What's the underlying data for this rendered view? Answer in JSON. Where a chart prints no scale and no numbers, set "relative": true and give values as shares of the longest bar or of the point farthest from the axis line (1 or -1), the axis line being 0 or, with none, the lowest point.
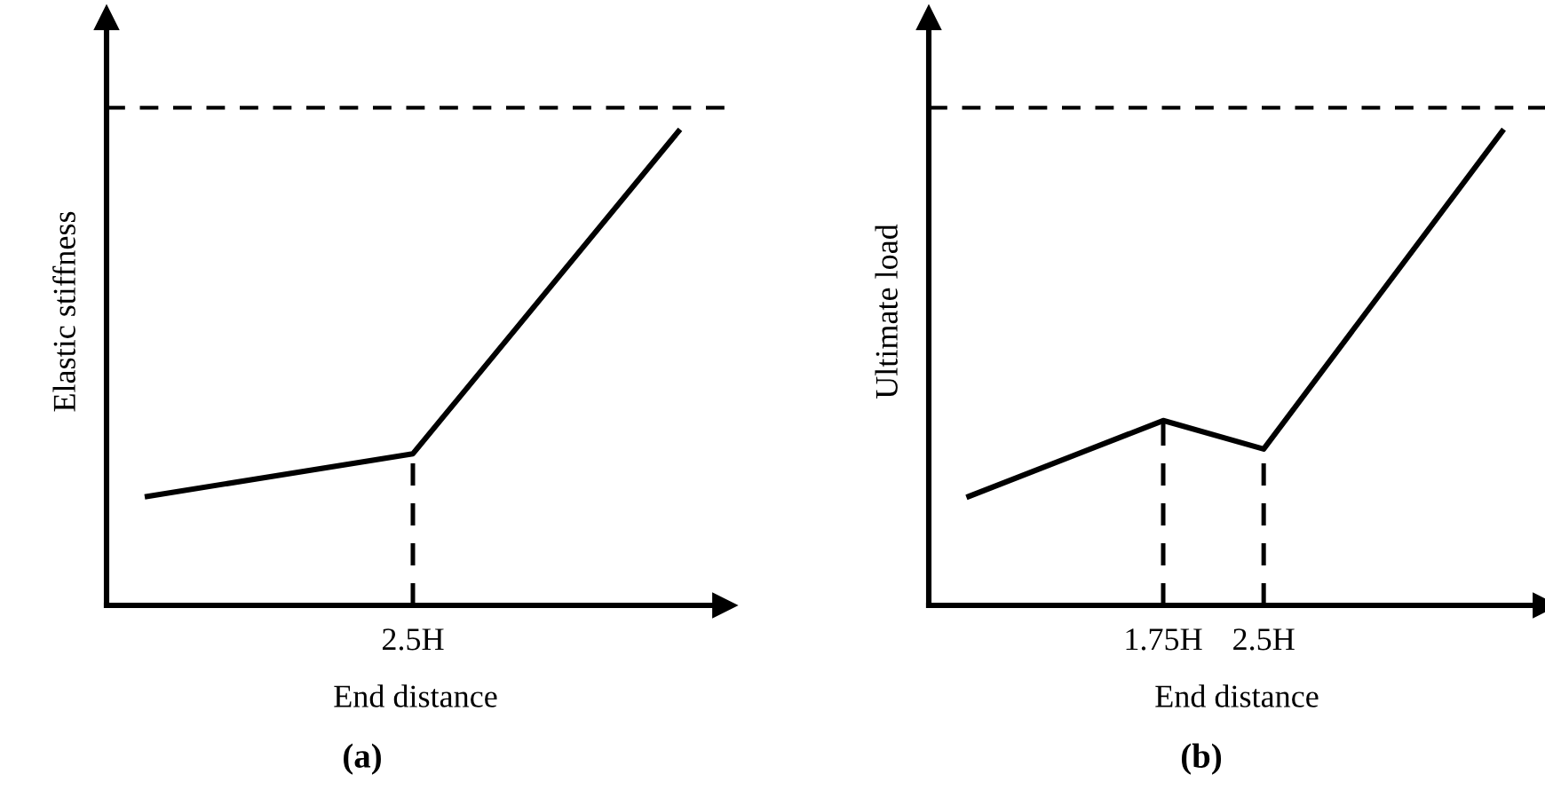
{
  "chart_data": [
    {
      "type": "line",
      "relative": true,
      "xlabel": "End distance",
      "ylabel": "Elastic stiffness",
      "annotations": [
        "(a)",
        "2.5H"
      ],
      "categories": [
        null,
        null,
        null
      ],
      "tick_labels": "x",
      "grid": false,
      "marker": "none",
      "line_style": "solid",
      "ref_lines": [
        {
          "axis": "y",
          "value": 1.05,
          "line_style": "dashed",
          "color": "#000000"
        }
      ],
      "series": [
        {
          "color": "#000000",
          "values": [
            0.23,
            0.32,
            1
          ]
        }
      ]
    },
    {
      "type": "line",
      "relative": true,
      "xlabel": "End distance",
      "ylabel": "Ultimate load",
      "annotations": [
        "(b)"
      ],
      "xlim": [
        0,
        4.6
      ],
      "xticks": [
        {
          "value": 1.75,
          "label": "1.75H"
        },
        {
          "value": 2.5,
          "label": "2.5H"
        }
      ],
      "tick_labels": "x",
      "grid": false,
      "marker": "none",
      "line_style": "solid",
      "ref_lines": [
        {
          "axis": "y",
          "value": 1.05,
          "line_style": "dashed",
          "color": "#000000"
        },
        {
          "axis": "x",
          "value": 1.75,
          "line_style": "dashed",
          "color": "#000000"
        },
        {
          "axis": "x",
          "value": 2.5,
          "line_style": "dashed",
          "color": "#000000"
        }
      ],
      "series": [
        {
          "color": "#000000",
          "x": [
            0.3,
            1.75,
            2.5,
            4.28
          ],
          "values": [
            0.23,
            0.39,
            0.33,
            1
          ]
        }
      ]
    }
  ]
}
